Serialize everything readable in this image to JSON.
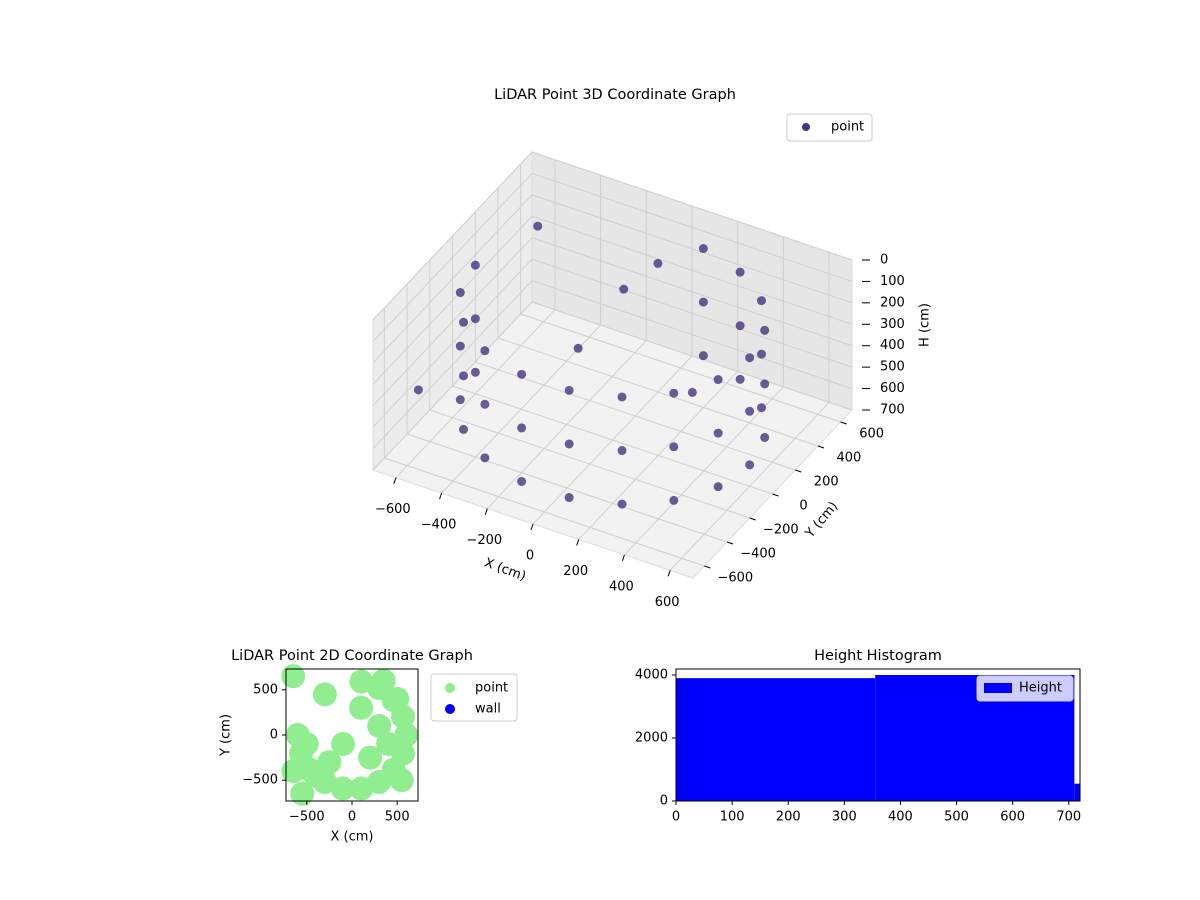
{
  "chart_data": [
    {
      "type": "scatter3d",
      "title": "LiDAR Point 3D Coordinate Graph",
      "xlabel": "X (cm)",
      "ylabel": "Y (cm)",
      "zlabel": "H (cm)",
      "xlim": [
        -700,
        700
      ],
      "ylim": [
        -700,
        700
      ],
      "zlim": [
        700,
        0
      ],
      "xticks": [
        {
          "value": -600,
          "label": "−600"
        },
        {
          "value": -400,
          "label": "−400"
        },
        {
          "value": -200,
          "label": "−200"
        },
        0,
        200,
        400,
        600
      ],
      "yticks": [
        {
          "value": -600,
          "label": "−600"
        },
        {
          "value": -400,
          "label": "−400"
        },
        {
          "value": -200,
          "label": "−200"
        },
        0,
        200,
        400,
        600
      ],
      "zticks": [
        0,
        100,
        200,
        300,
        400,
        500,
        600,
        700
      ],
      "grid": true,
      "legend": "upper right",
      "series": [
        {
          "name": "point",
          "color": "#46327e",
          "x": [
            -600,
            -600,
            -600,
            -564,
            -564,
            -564,
            -460,
            -460,
            -460,
            -300,
            -300,
            -300,
            -104,
            -104,
            -104,
            104,
            104,
            104,
            300,
            300,
            300,
            460,
            460,
            460,
            564,
            564,
            564,
            600,
            600,
            600,
            564,
            564,
            564,
            460,
            460,
            460,
            300,
            300,
            300,
            104,
            104,
            104,
            -100,
            0,
            -200,
            250,
            -650,
            -700
          ],
          "y": [
            0,
            0,
            0,
            -205,
            -205,
            -205,
            -386,
            -386,
            -386,
            -520,
            -520,
            -520,
            -591,
            -591,
            -591,
            -591,
            -591,
            -591,
            -520,
            -520,
            -520,
            -386,
            -386,
            -386,
            -205,
            -205,
            -205,
            0,
            0,
            0,
            205,
            205,
            205,
            386,
            386,
            386,
            520,
            520,
            520,
            591,
            591,
            591,
            300,
            400,
            100,
            200,
            650,
            -300
          ],
          "z": [
            100,
            350,
            600,
            100,
            350,
            600,
            100,
            350,
            600,
            100,
            350,
            600,
            100,
            350,
            600,
            100,
            350,
            600,
            100,
            350,
            600,
            100,
            350,
            600,
            100,
            350,
            600,
            100,
            350,
            600,
            100,
            350,
            600,
            100,
            350,
            600,
            100,
            350,
            600,
            100,
            350,
            600,
            200,
            100,
            400,
            500,
            300,
            550
          ]
        }
      ]
    },
    {
      "type": "scatter",
      "title": "LiDAR Point 2D Coordinate Graph",
      "xlabel": "X (cm)",
      "ylabel": "Y (cm)",
      "xlim": [
        -730,
        730
      ],
      "ylim": [
        -730,
        730
      ],
      "xticks": [
        {
          "value": -500,
          "label": "−500"
        },
        0,
        500
      ],
      "yticks": [
        {
          "value": -500,
          "label": "−500"
        },
        0,
        500
      ],
      "legend": "outside right",
      "series": [
        {
          "name": "point",
          "color": "#90ee90",
          "x": [
            -600,
            -564,
            -460,
            -300,
            -104,
            104,
            300,
            460,
            564,
            600,
            564,
            460,
            300,
            104,
            -650,
            -400,
            -250,
            -100,
            200,
            400,
            500,
            300,
            100,
            -500,
            -550,
            -300,
            350,
            550,
            -650
          ],
          "y": [
            0,
            -205,
            -386,
            -520,
            -591,
            -591,
            -520,
            -386,
            -205,
            0,
            205,
            386,
            520,
            591,
            650,
            -450,
            -300,
            -100,
            -250,
            -100,
            400,
            100,
            300,
            -100,
            -650,
            450,
            600,
            -500,
            -400
          ]
        },
        {
          "name": "wall",
          "color": "#0000ff",
          "x": [],
          "y": []
        }
      ]
    },
    {
      "type": "histogram",
      "title": "Height Histogram",
      "label": "Height",
      "color": "#0000ff",
      "bins": [
        0,
        355,
        710,
        720
      ],
      "values": [
        3900,
        4000,
        550
      ],
      "xlim": [
        0,
        720
      ],
      "ylim": [
        0,
        4190
      ],
      "xticks": [
        0,
        100,
        200,
        300,
        400,
        500,
        600,
        700
      ],
      "yticks": [
        0,
        2000,
        4000
      ],
      "legend": "upper right"
    }
  ]
}
